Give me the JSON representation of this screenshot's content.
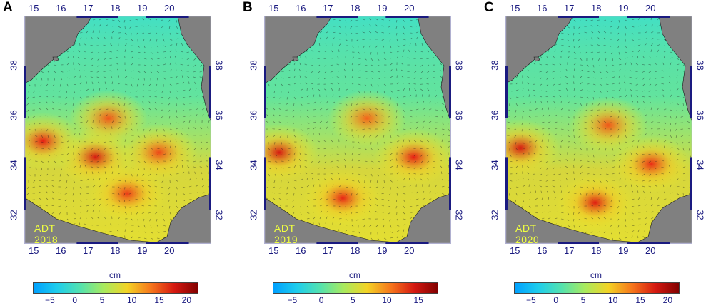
{
  "panels": [
    {
      "letter": "A",
      "label": "ADT 2018",
      "x_ticks": [
        "15",
        "16",
        "17",
        "18",
        "19",
        "20"
      ],
      "y_ticks": [
        "38",
        "36",
        "34",
        "32"
      ],
      "colorbar": {
        "unit": "cm",
        "ticks": [
          "−5",
          "0",
          "5",
          "10",
          "15",
          "20"
        ],
        "range": [
          -8,
          22
        ]
      },
      "hotspots": [
        [
          0.38,
          0.62,
          1.0
        ],
        [
          0.1,
          0.55,
          0.9
        ],
        [
          0.55,
          0.78,
          0.7
        ],
        [
          0.72,
          0.6,
          0.6
        ],
        [
          0.45,
          0.45,
          0.5
        ]
      ]
    },
    {
      "letter": "B",
      "label": "ADT 2019",
      "x_ticks": [
        "15",
        "16",
        "17",
        "18",
        "19",
        "20"
      ],
      "y_ticks": [
        "38",
        "36",
        "34",
        "32"
      ],
      "colorbar": {
        "unit": "cm",
        "ticks": [
          "−5",
          "0",
          "5",
          "10",
          "15"
        ],
        "range": [
          -8,
          18
        ]
      },
      "hotspots": [
        [
          0.08,
          0.6,
          1.0
        ],
        [
          0.42,
          0.8,
          0.85
        ],
        [
          0.8,
          0.62,
          0.9
        ],
        [
          0.55,
          0.45,
          0.4
        ]
      ]
    },
    {
      "letter": "C",
      "label": "ADT 2020",
      "x_ticks": [
        "15",
        "16",
        "17",
        "18",
        "19",
        "20"
      ],
      "y_ticks": [
        "38",
        "36",
        "34",
        "32"
      ],
      "colorbar": {
        "unit": "cm",
        "ticks": [
          "−5",
          "0",
          "5",
          "10",
          "15",
          "20"
        ],
        "range": [
          -8,
          22
        ]
      },
      "hotspots": [
        [
          0.08,
          0.58,
          1.0
        ],
        [
          0.48,
          0.82,
          0.95
        ],
        [
          0.78,
          0.65,
          0.8
        ],
        [
          0.55,
          0.48,
          0.5
        ]
      ]
    }
  ],
  "colors": {
    "land": "#808080",
    "frame": "#b0b0d0",
    "axis_bar": "#1a1a80"
  }
}
